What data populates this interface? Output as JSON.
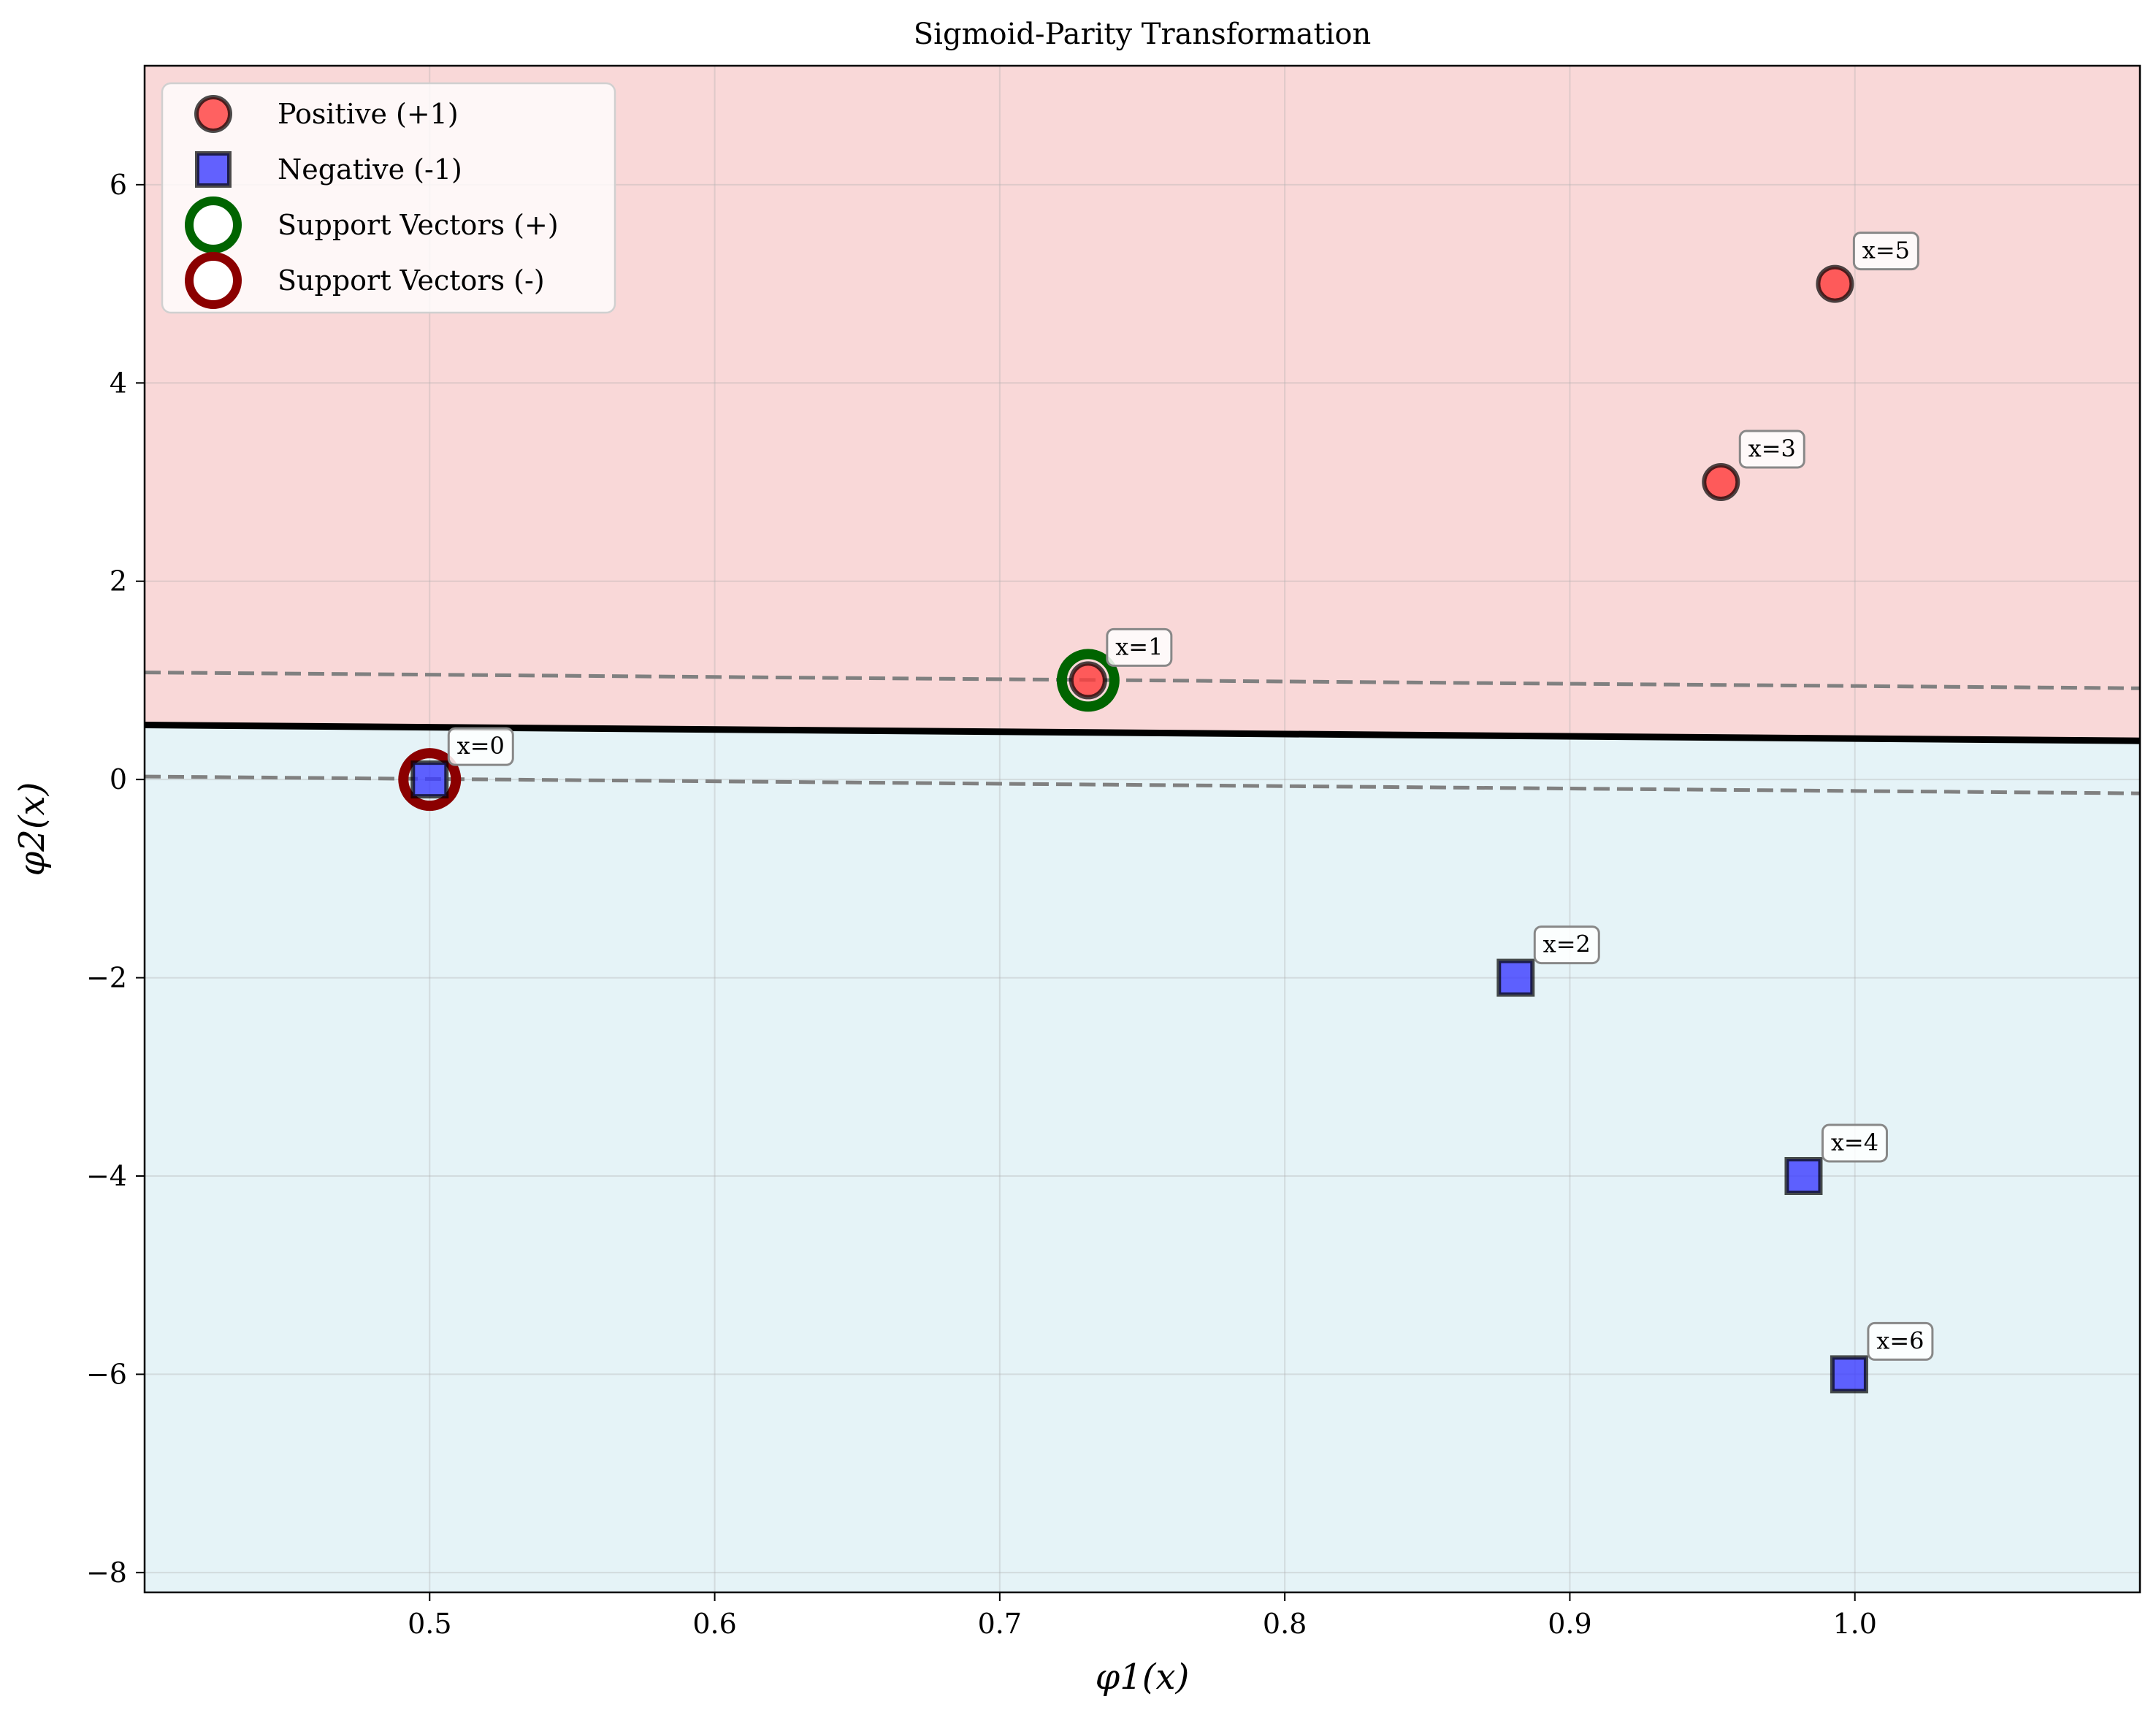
{
  "chart_data": {
    "type": "scatter",
    "title": "Sigmoid-Parity Transformation",
    "xlabel": "φ1(x)",
    "ylabel": "φ2(x)",
    "xlim": [
      0.4,
      1.1
    ],
    "ylim": [
      -8.2,
      7.2
    ],
    "xticks": [
      0.5,
      0.6,
      0.7,
      0.8,
      0.9,
      1.0
    ],
    "xtick_labels": [
      "0.5",
      "0.6",
      "0.7",
      "0.8",
      "0.9",
      "1.0"
    ],
    "yticks": [
      6,
      4,
      2,
      0,
      -2,
      -4,
      -6,
      -8
    ],
    "ytick_labels": [
      "6",
      "4",
      "2",
      "0",
      "−2",
      "−4",
      "−6",
      "−8"
    ],
    "grid": true,
    "legend_placement": "top-left",
    "colors": {
      "positive_region": "#f9d8d8",
      "negative_region": "#e5f3f7",
      "positive_marker": "#ff3b3b",
      "negative_marker": "#3b3bff",
      "sv_positive": "#006400",
      "sv_negative": "#8b0000",
      "margin": "#808080",
      "boundary": "#000000"
    },
    "series": [
      {
        "name": "Positive (+1)",
        "marker": "circle",
        "points": [
          {
            "x": 0.731,
            "y": 1,
            "label": "x=1"
          },
          {
            "x": 0.953,
            "y": 3,
            "label": "x=3"
          },
          {
            "x": 0.993,
            "y": 5,
            "label": "x=5"
          }
        ]
      },
      {
        "name": "Negative (-1)",
        "marker": "square",
        "points": [
          {
            "x": 0.5,
            "y": 0,
            "label": "x=0"
          },
          {
            "x": 0.881,
            "y": -2,
            "label": "x=2"
          },
          {
            "x": 0.982,
            "y": -4,
            "label": "x=4"
          },
          {
            "x": 0.998,
            "y": -6,
            "label": "x=6"
          }
        ]
      },
      {
        "name": "Support Vectors (+)",
        "marker": "ring",
        "points": [
          {
            "x": 0.731,
            "y": 1
          }
        ]
      },
      {
        "name": "Support Vectors (-)",
        "marker": "ring",
        "points": [
          {
            "x": 0.5,
            "y": 0
          }
        ]
      }
    ],
    "decision_boundary": {
      "x": [
        0.4,
        1.1
      ],
      "y": [
        0.55,
        0.39
      ]
    },
    "margins": [
      {
        "x": [
          0.4,
          1.1
        ],
        "y": [
          1.08,
          0.92
        ]
      },
      {
        "x": [
          0.4,
          1.1
        ],
        "y": [
          0.03,
          -0.14
        ]
      }
    ]
  }
}
